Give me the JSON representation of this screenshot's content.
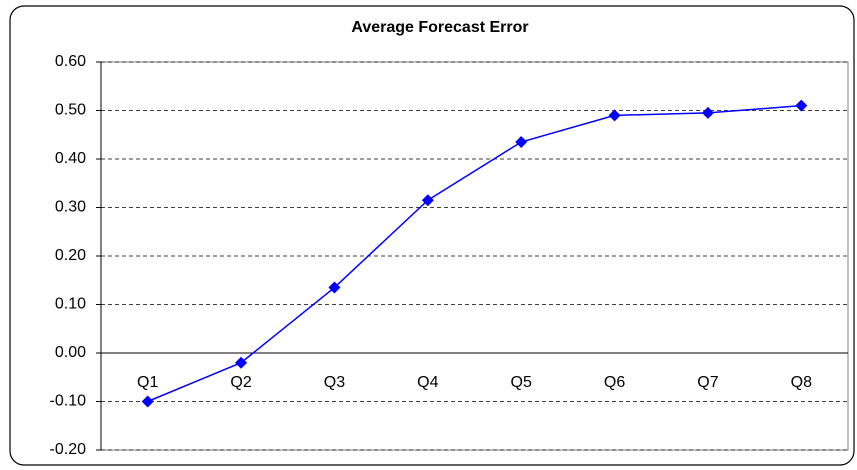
{
  "chart_data": {
    "type": "line",
    "title": "Average Forecast Error",
    "categories": [
      "Q1",
      "Q2",
      "Q3",
      "Q4",
      "Q5",
      "Q6",
      "Q7",
      "Q8"
    ],
    "values": [
      -0.1,
      -0.02,
      0.135,
      0.315,
      0.435,
      0.49,
      0.495,
      0.51
    ],
    "color": "#0000ff",
    "ylim": [
      -0.2,
      0.6
    ],
    "yticks": [
      {
        "value": -0.2,
        "label": "-0.20"
      },
      {
        "value": -0.1,
        "label": "-0.10"
      },
      {
        "value": 0,
        "label": "0.00"
      },
      {
        "value": 0.1,
        "label": "0.10"
      },
      {
        "value": 0.2,
        "label": "0.20"
      },
      {
        "value": 0.3,
        "label": "0.30"
      },
      {
        "value": 0.4,
        "label": "0.40"
      },
      {
        "value": 0.5,
        "label": "0.50"
      },
      {
        "value": 0.6,
        "label": "0.60"
      }
    ],
    "grid": true
  }
}
